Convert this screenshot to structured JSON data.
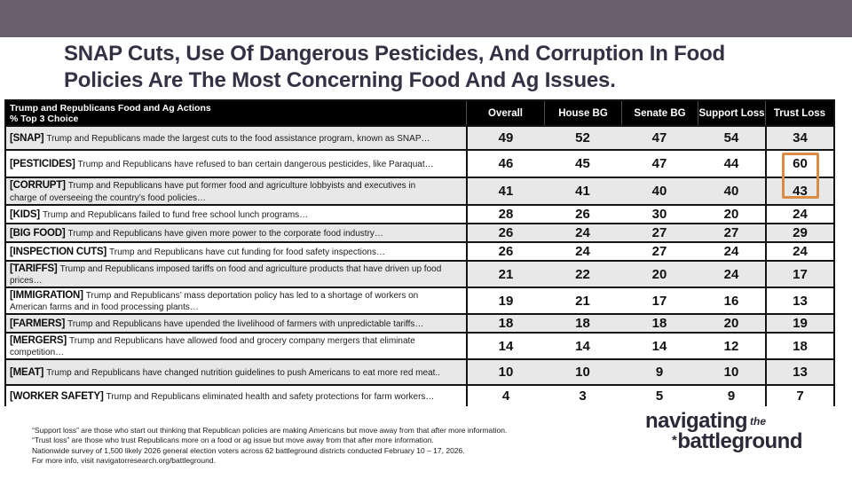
{
  "topbar": {
    "color": "#69616E"
  },
  "title": {
    "line1": "SNAP Cuts, Use Of Dangerous Pesticides, And Corruption In Food",
    "line2": "Policies Are The Most Concerning Food And Ag Issues."
  },
  "table": {
    "corner": {
      "line1": "Trump and Republicans Food and Ag Actions",
      "line2": "% Top 3 Choice"
    },
    "columns": [
      "Overall",
      "House BG",
      "Senate BG",
      "Support Loss",
      "Trust Loss"
    ],
    "rows": [
      {
        "tag": "[SNAP]",
        "description": "Trump and Republicans made the largest cuts to the food assistance program, known as SNAP…",
        "values": [
          49,
          52,
          47,
          54,
          34
        ]
      },
      {
        "tag": "[PESTICIDES]",
        "description": "Trump and Republicans have refused to ban certain dangerous pesticides, like Paraquat…",
        "values": [
          46,
          45,
          47,
          44,
          60
        ]
      },
      {
        "tag": "[CORRUPT]",
        "description": "Trump and Republicans have put former food and agriculture lobbyists and executives in charge of overseeing the country’s food policies…",
        "values": [
          41,
          41,
          40,
          40,
          43
        ]
      },
      {
        "tag": "[KIDS]",
        "description": "Trump and Republicans failed to fund free school lunch programs…",
        "values": [
          28,
          26,
          30,
          20,
          24
        ]
      },
      {
        "tag": "[BIG FOOD]",
        "description": "Trump and Republicans have given more power to the corporate food industry…",
        "values": [
          26,
          24,
          27,
          27,
          29
        ]
      },
      {
        "tag": "[INSPECTION CUTS]",
        "description": "Trump and Republicans have cut funding for food safety inspections…",
        "values": [
          26,
          24,
          27,
          24,
          24
        ]
      },
      {
        "tag": "[TARIFFS]",
        "description": "Trump and Republicans imposed tariffs on food and agriculture products that have driven up food prices…",
        "values": [
          21,
          22,
          20,
          24,
          17
        ]
      },
      {
        "tag": "[IMMIGRATION]",
        "description": "Trump and Republicans’ mass deportation policy has led to a shortage of workers on American farms and in food processing plants…",
        "values": [
          19,
          21,
          17,
          16,
          13
        ]
      },
      {
        "tag": "[FARMERS]",
        "description": "Trump and Republicans have upended the livelihood of farmers with unpredictable tariffs…",
        "values": [
          18,
          18,
          18,
          20,
          19
        ]
      },
      {
        "tag": "[MERGERS]",
        "description": "Trump and Republicans have allowed food and grocery company mergers that eliminate competition…",
        "values": [
          14,
          14,
          14,
          12,
          18
        ]
      },
      {
        "tag": "[MEAT]",
        "description": "Trump and Republicans have changed nutrition guidelines to push Americans to eat more red meat..",
        "values": [
          10,
          10,
          9,
          10,
          13
        ]
      },
      {
        "tag": "[WORKER SAFETY]",
        "description": "Trump and Republicans eliminated health and safety protections for farm workers…",
        "values": [
          4,
          3,
          5,
          9,
          7
        ]
      }
    ],
    "highlight": {
      "column": "Trust Loss",
      "rows": [
        "[PESTICIDES]",
        "[CORRUPT]"
      ],
      "values": [
        60,
        43
      ],
      "color": "#D88C45"
    }
  },
  "footnotes": [
    "“Support loss” are those who start out thinking that Republican policies are making Americans but move away from that after more information.",
    "“Trust loss” are those who trust Republicans more on a food or ag issue but move away from that after more information.",
    "Nationwide survey of 1,500 likely 2026 general election voters across 62 battleground districts conducted February 10 – 17, 2026.",
    "For more info, visit navigatorresearch.org/battleground."
  ],
  "logo": {
    "word1": "navigating",
    "word2": "the",
    "asterisk": "*",
    "word3": "battleground"
  },
  "chart_data": {
    "type": "table",
    "title": "SNAP Cuts, Use Of Dangerous Pesticides, And Corruption In Food Policies Are The Most Concerning Food And Ag Issues.",
    "subtitle": "Trump and Republicans Food and Ag Actions — % Top 3 Choice",
    "categories": [
      "SNAP",
      "PESTICIDES",
      "CORRUPT",
      "KIDS",
      "BIG FOOD",
      "INSPECTION CUTS",
      "TARIFFS",
      "IMMIGRATION",
      "FARMERS",
      "MERGERS",
      "MEAT",
      "WORKER SAFETY"
    ],
    "series": [
      {
        "name": "Overall",
        "values": [
          49,
          46,
          41,
          28,
          26,
          26,
          21,
          19,
          18,
          14,
          10,
          4
        ]
      },
      {
        "name": "House BG",
        "values": [
          52,
          45,
          41,
          26,
          24,
          24,
          22,
          21,
          18,
          14,
          10,
          3
        ]
      },
      {
        "name": "Senate BG",
        "values": [
          47,
          47,
          40,
          30,
          27,
          27,
          20,
          17,
          18,
          14,
          9,
          5
        ]
      },
      {
        "name": "Support Loss",
        "values": [
          54,
          44,
          40,
          20,
          27,
          24,
          24,
          16,
          20,
          12,
          10,
          9
        ]
      },
      {
        "name": "Trust Loss",
        "values": [
          34,
          60,
          43,
          24,
          29,
          24,
          17,
          13,
          19,
          18,
          13,
          7
        ]
      }
    ],
    "highlighted_values": [
      {
        "category": "PESTICIDES",
        "series": "Trust Loss",
        "value": 60
      },
      {
        "category": "CORRUPT",
        "series": "Trust Loss",
        "value": 43
      }
    ],
    "legend_position": "none",
    "grid": true
  }
}
